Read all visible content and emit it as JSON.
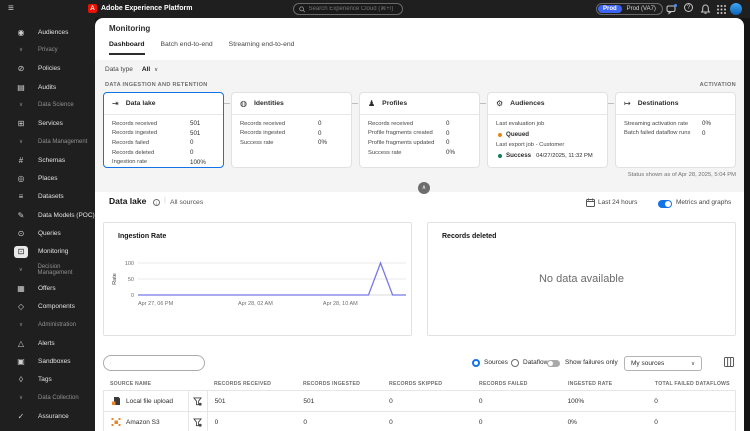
{
  "topbar": {
    "app_title": "Adobe Experience Platform",
    "logo_letter": "A",
    "search_placeholder": "Search Experience Cloud (⌘+/)",
    "env_badge": "Prod",
    "env_name": "Prod (VA7)"
  },
  "sidebar": {
    "items": [
      {
        "type": "item",
        "label": "Audiences",
        "icon": "◉"
      },
      {
        "type": "header",
        "label": "Privacy"
      },
      {
        "type": "item",
        "label": "Policies",
        "icon": "⊘"
      },
      {
        "type": "item",
        "label": "Audits",
        "icon": "▤"
      },
      {
        "type": "header",
        "label": "Data Science"
      },
      {
        "type": "item",
        "label": "Services",
        "icon": "⊞"
      },
      {
        "type": "header",
        "label": "Data Management"
      },
      {
        "type": "item",
        "label": "Schemas",
        "icon": "#"
      },
      {
        "type": "item",
        "label": "Places",
        "icon": "◎"
      },
      {
        "type": "item",
        "label": "Datasets",
        "icon": "≡"
      },
      {
        "type": "item",
        "label": "Data Models (POC)",
        "icon": "✎"
      },
      {
        "type": "item",
        "label": "Queries",
        "icon": "⊙"
      },
      {
        "type": "item",
        "label": "Monitoring",
        "icon": "⊡",
        "selected": true
      },
      {
        "type": "header",
        "label": "Decision Management"
      },
      {
        "type": "item",
        "label": "Offers",
        "icon": "▦"
      },
      {
        "type": "item",
        "label": "Components",
        "icon": "◇"
      },
      {
        "type": "header",
        "label": "Administration"
      },
      {
        "type": "item",
        "label": "Alerts",
        "icon": "△"
      },
      {
        "type": "item",
        "label": "Sandboxes",
        "icon": "▣"
      },
      {
        "type": "item",
        "label": "Tags",
        "icon": "◊"
      },
      {
        "type": "header",
        "label": "Data Collection"
      },
      {
        "type": "item",
        "label": "Assurance",
        "icon": "✓"
      }
    ]
  },
  "page": {
    "title": "Monitoring",
    "tabs": [
      {
        "label": "Dashboard",
        "selected": true
      },
      {
        "label": "Batch end-to-end",
        "selected": false
      },
      {
        "label": "Streaming end-to-end",
        "selected": false
      }
    ],
    "data_type_label": "Data type",
    "data_type_value": "All",
    "ingestion_section_label": "DATA INGESTION AND RETENTION",
    "activation_label": "ACTIVATION",
    "status_line": "Status shown as of Apr 28, 2025, 5:04 PM"
  },
  "cards": [
    {
      "name": "Data lake",
      "icon": "⇥",
      "selected": true,
      "metrics": [
        {
          "label": "Records received",
          "value": "501"
        },
        {
          "label": "Records ingested",
          "value": "501"
        },
        {
          "label": "Records failed",
          "value": "0"
        },
        {
          "label": "Records deleted",
          "value": "0"
        },
        {
          "label": "Ingestion rate",
          "value": "100%"
        }
      ]
    },
    {
      "name": "Identities",
      "icon": "◍",
      "selected": false,
      "metrics": [
        {
          "label": "Records received",
          "value": "0"
        },
        {
          "label": "Records ingested",
          "value": "0"
        },
        {
          "label": "Success rate",
          "value": "0%"
        }
      ]
    },
    {
      "name": "Profiles",
      "icon": "♟",
      "selected": false,
      "metrics": [
        {
          "label": "Records received",
          "value": "0"
        },
        {
          "label": "Profile fragments created",
          "value": "0"
        },
        {
          "label": "Profile fragments updated",
          "value": "0"
        },
        {
          "label": "Success rate",
          "value": "0%"
        }
      ]
    },
    {
      "name": "Audiences",
      "icon": "⚙",
      "selected": false,
      "jobs": [
        {
          "label": "Last evaluation job",
          "status": "Queued",
          "time": "",
          "dot_color": "#e68619"
        },
        {
          "label": "Last export job - Customer",
          "status": "Success",
          "time": "04/27/2025, 11:32 PM",
          "dot_color": "#12805c"
        }
      ]
    },
    {
      "name": "Destinations",
      "icon": "↦",
      "selected": false,
      "metrics": [
        {
          "label": "Streaming activation rate",
          "value": "0%"
        },
        {
          "label": "Batch failed dataflow runs",
          "value": "0"
        }
      ]
    }
  ],
  "datalake": {
    "title": "Data lake",
    "subtitle": "All sources",
    "time_range": "Last 24 hours",
    "metrics_toggle_label": "Metrics and graphs",
    "records_deleted_title": "Records deleted",
    "no_data_text": "No data available"
  },
  "chart_data": {
    "type": "line",
    "title": "Ingestion Rate",
    "ylabel": "Rate",
    "ylim": [
      0,
      100
    ],
    "yticks": [
      0,
      50,
      100
    ],
    "grid": true,
    "line_color": "#7878e8",
    "xticks": [
      {
        "label": "Apr 27, 06 PM",
        "pos": 0.0
      },
      {
        "label": "Apr 28, 02 AM",
        "pos": 0.373
      },
      {
        "label": "Apr 28, 10 AM",
        "pos": 0.69
      }
    ],
    "points": [
      {
        "pos": 0.0,
        "value": 0
      },
      {
        "pos": 0.86,
        "value": 0
      },
      {
        "pos": 0.905,
        "value": 100
      },
      {
        "pos": 0.95,
        "value": 0
      },
      {
        "pos": 1.0,
        "value": 0
      }
    ]
  },
  "controls": {
    "radio_sources": "Sources",
    "radio_dataflows": "Dataflows",
    "failures_toggle_label": "Show failures only",
    "source_filter_value": "My sources"
  },
  "table": {
    "headers": [
      "SOURCE NAME",
      "RECORDS RECEIVED",
      "RECORDS INGESTED",
      "RECORDS SKIPPED",
      "RECORDS FAILED",
      "INGESTED RATE",
      "TOTAL FAILED DATAFLOWS"
    ],
    "rows": [
      {
        "source": "Local file upload",
        "icon": "local-file-upload",
        "received": "501",
        "ingested": "501",
        "skipped": "0",
        "failed": "0",
        "rate": "100%",
        "total_failed": "0"
      },
      {
        "source": "Amazon S3",
        "icon": "amazon-s3",
        "received": "0",
        "ingested": "0",
        "skipped": "0",
        "failed": "0",
        "rate": "0%",
        "total_failed": "0"
      }
    ]
  },
  "colors": {
    "accent": "#1473e6",
    "env_badge": "#3d63f2",
    "chart_line": "#7878e8",
    "warning_dot": "#e68619",
    "success_dot": "#12805c",
    "s3_orange": "#e8862b"
  }
}
